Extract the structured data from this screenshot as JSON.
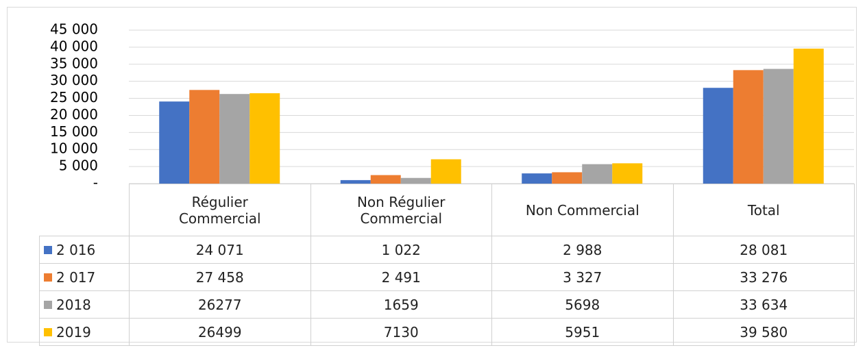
{
  "chart_data": {
    "type": "bar",
    "categories": [
      "Régulier Commercial",
      "Non Régulier Commercial",
      "Non Commercial",
      "Total"
    ],
    "series": [
      {
        "name": "2 016",
        "color": "#4472c4",
        "values": [
          24071,
          1022,
          2988,
          28081
        ],
        "value_labels": [
          "24 071",
          "1 022",
          "2 988",
          "28 081"
        ]
      },
      {
        "name": "2 017",
        "color": "#ed7d31",
        "values": [
          27458,
          2491,
          3327,
          33276
        ],
        "value_labels": [
          "27 458",
          "2 491",
          "3 327",
          "33 276"
        ]
      },
      {
        "name": "2018",
        "color": "#a5a5a5",
        "values": [
          26277,
          1659,
          5698,
          33634
        ],
        "value_labels": [
          "26277",
          "1659",
          "5698",
          "33 634"
        ]
      },
      {
        "name": "2019",
        "color": "#ffc000",
        "values": [
          26499,
          7130,
          5951,
          39580
        ],
        "value_labels": [
          "26499",
          "7130",
          "5951",
          "39 580"
        ]
      }
    ],
    "ylim": [
      0,
      45000
    ],
    "yticks": [
      {
        "value": 0,
        "label": "-"
      },
      {
        "value": 5000,
        "label": "5 000"
      },
      {
        "value": 10000,
        "label": "10 000"
      },
      {
        "value": 15000,
        "label": "15 000"
      },
      {
        "value": 20000,
        "label": "20 000"
      },
      {
        "value": 25000,
        "label": "25 000"
      },
      {
        "value": 30000,
        "label": "30 000"
      },
      {
        "value": 35000,
        "label": "35 000"
      },
      {
        "value": 40000,
        "label": "40 000"
      },
      {
        "value": 45000,
        "label": "45 000"
      }
    ],
    "grid": true,
    "data_table": true
  }
}
